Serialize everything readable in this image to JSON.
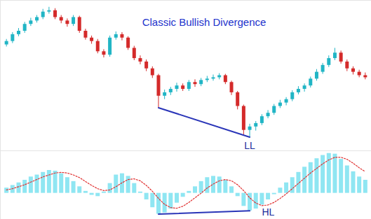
{
  "chart_data": [
    {
      "type": "candlestick",
      "title": "Classic Bullish Divergence",
      "tick_labels": false,
      "xlim": [
        -1,
        60
      ],
      "ylim": [
        -15,
        205
      ],
      "x": [
        0,
        1,
        2,
        3,
        4,
        5,
        6,
        7,
        8,
        9,
        10,
        11,
        12,
        13,
        14,
        15,
        16,
        17,
        18,
        19,
        20,
        21,
        22,
        23,
        24,
        25,
        26,
        27,
        28,
        29,
        30,
        31,
        32,
        33,
        34,
        35,
        36,
        37,
        38,
        39,
        40,
        41,
        42,
        43,
        44,
        45,
        46,
        47,
        48,
        49,
        50,
        51,
        52,
        53,
        54,
        55,
        56,
        57,
        58,
        59
      ],
      "open": [
        140,
        145,
        155,
        160,
        170,
        175,
        180,
        188,
        190,
        180,
        175,
        170,
        180,
        160,
        150,
        145,
        130,
        125,
        150,
        155,
        150,
        135,
        120,
        115,
        105,
        95,
        65,
        70,
        75,
        80,
        75,
        85,
        82,
        88,
        90,
        92,
        95,
        85,
        70,
        50,
        15,
        20,
        25,
        35,
        40,
        50,
        55,
        60,
        70,
        75,
        80,
        90,
        100,
        110,
        120,
        128,
        115,
        105,
        100,
        95
      ],
      "high": [
        148,
        158,
        164,
        173,
        179,
        183,
        192,
        195,
        193,
        183,
        178,
        183,
        182,
        163,
        153,
        148,
        133,
        153,
        159,
        158,
        152,
        138,
        124,
        118,
        108,
        97,
        74,
        78,
        84,
        83,
        88,
        89,
        91,
        94,
        96,
        98,
        97,
        87,
        72,
        52,
        24,
        28,
        38,
        44,
        53,
        59,
        63,
        73,
        79,
        83,
        93,
        104,
        113,
        124,
        135,
        131,
        118,
        108,
        103,
        99
      ],
      "low": [
        137,
        142,
        152,
        157,
        167,
        172,
        177,
        185,
        177,
        171,
        166,
        167,
        157,
        147,
        141,
        127,
        121,
        122,
        147,
        146,
        132,
        117,
        111,
        101,
        91,
        48,
        60,
        66,
        71,
        72,
        72,
        78,
        79,
        85,
        87,
        89,
        82,
        66,
        45,
        8,
        5,
        14,
        22,
        32,
        37,
        47,
        51,
        57,
        67,
        71,
        77,
        87,
        97,
        107,
        117,
        112,
        101,
        96,
        92,
        89
      ],
      "close": [
        145,
        155,
        160,
        170,
        175,
        180,
        188,
        190,
        180,
        175,
        170,
        180,
        160,
        150,
        145,
        130,
        125,
        150,
        155,
        150,
        135,
        120,
        115,
        105,
        95,
        65,
        70,
        75,
        80,
        75,
        85,
        82,
        88,
        90,
        92,
        95,
        85,
        70,
        50,
        15,
        20,
        25,
        35,
        40,
        50,
        55,
        60,
        70,
        75,
        80,
        90,
        100,
        110,
        120,
        128,
        115,
        105,
        100,
        95,
        92
      ],
      "colors": [
        "#21b5c5",
        "#21b5c5",
        "#21b5c5",
        "#21b5c5",
        "#21b5c5",
        "#21b5c5",
        "#21b5c5",
        "#21b5c5",
        "#d42a2a",
        "#d42a2a",
        "#d42a2a",
        "#21b5c5",
        "#d42a2a",
        "#d42a2a",
        "#d42a2a",
        "#d42a2a",
        "#d42a2a",
        "#21b5c5",
        "#21b5c5",
        "#d42a2a",
        "#d42a2a",
        "#d42a2a",
        "#d42a2a",
        "#d42a2a",
        "#d42a2a",
        "#d42a2a",
        "#21b5c5",
        "#21b5c5",
        "#21b5c5",
        "#d42a2a",
        "#21b5c5",
        "#d42a2a",
        "#21b5c5",
        "#21b5c5",
        "#21b5c5",
        "#21b5c5",
        "#d42a2a",
        "#d42a2a",
        "#d42a2a",
        "#d42a2a",
        "#21b5c5",
        "#21b5c5",
        "#21b5c5",
        "#21b5c5",
        "#21b5c5",
        "#21b5c5",
        "#21b5c5",
        "#21b5c5",
        "#21b5c5",
        "#21b5c5",
        "#21b5c5",
        "#21b5c5",
        "#21b5c5",
        "#21b5c5",
        "#21b5c5",
        "#d42a2a",
        "#d42a2a",
        "#d42a2a",
        "#d42a2a",
        "#d42a2a"
      ],
      "trendline": {
        "x": [
          25,
          40
        ],
        "y": [
          48,
          5
        ],
        "color": "#2a35b8"
      },
      "annotations": [
        {
          "text": "LL",
          "x": 40,
          "y": -8
        }
      ]
    },
    {
      "type": "macd",
      "tick_labels": false,
      "xlim": [
        -1,
        60
      ],
      "ylim": [
        -40,
        65
      ],
      "x": [
        0,
        1,
        2,
        3,
        4,
        5,
        6,
        7,
        8,
        9,
        10,
        11,
        12,
        13,
        14,
        15,
        16,
        17,
        18,
        19,
        20,
        21,
        22,
        23,
        24,
        25,
        26,
        27,
        28,
        29,
        30,
        31,
        32,
        33,
        34,
        35,
        36,
        37,
        38,
        39,
        40,
        41,
        42,
        43,
        44,
        45,
        46,
        47,
        48,
        49,
        50,
        51,
        52,
        53,
        54,
        55,
        56,
        57,
        58,
        59
      ],
      "series": [
        {
          "type": "bar",
          "color": "#8fe6f2",
          "values": [
            8,
            12,
            16,
            20,
            25,
            28,
            32,
            35,
            34,
            30,
            24,
            18,
            10,
            3,
            -3,
            -5,
            2,
            15,
            28,
            30,
            26,
            15,
            2,
            -10,
            -22,
            -32,
            -30,
            -24,
            -15,
            -6,
            3,
            10,
            18,
            24,
            26,
            25,
            20,
            10,
            -5,
            -20,
            -27,
            -24,
            -18,
            -10,
            -2,
            8,
            16,
            24,
            32,
            40,
            47,
            53,
            58,
            61,
            60,
            52,
            42,
            33,
            25,
            20
          ]
        },
        {
          "type": "line",
          "color": "#e03030",
          "line_style": "dotted",
          "values": [
            5,
            7,
            10,
            13,
            17,
            21,
            25,
            28,
            31,
            32,
            31,
            28,
            24,
            18,
            12,
            7,
            4,
            5,
            10,
            16,
            21,
            22,
            19,
            12,
            3,
            -8,
            -17,
            -22,
            -23,
            -20,
            -14,
            -7,
            0,
            8,
            14,
            19,
            21,
            19,
            13,
            4,
            -7,
            -15,
            -19,
            -18,
            -14,
            -8,
            -1,
            7,
            15,
            23,
            31,
            38,
            45,
            51,
            55,
            55,
            52,
            46,
            39,
            33
          ]
        }
      ],
      "trendline": {
        "x": [
          25,
          40
        ],
        "y": [
          -32,
          -27
        ],
        "color": "#2a35b8"
      },
      "annotations": [
        {
          "text": "HL",
          "x": 42,
          "y": -29
        }
      ]
    }
  ]
}
